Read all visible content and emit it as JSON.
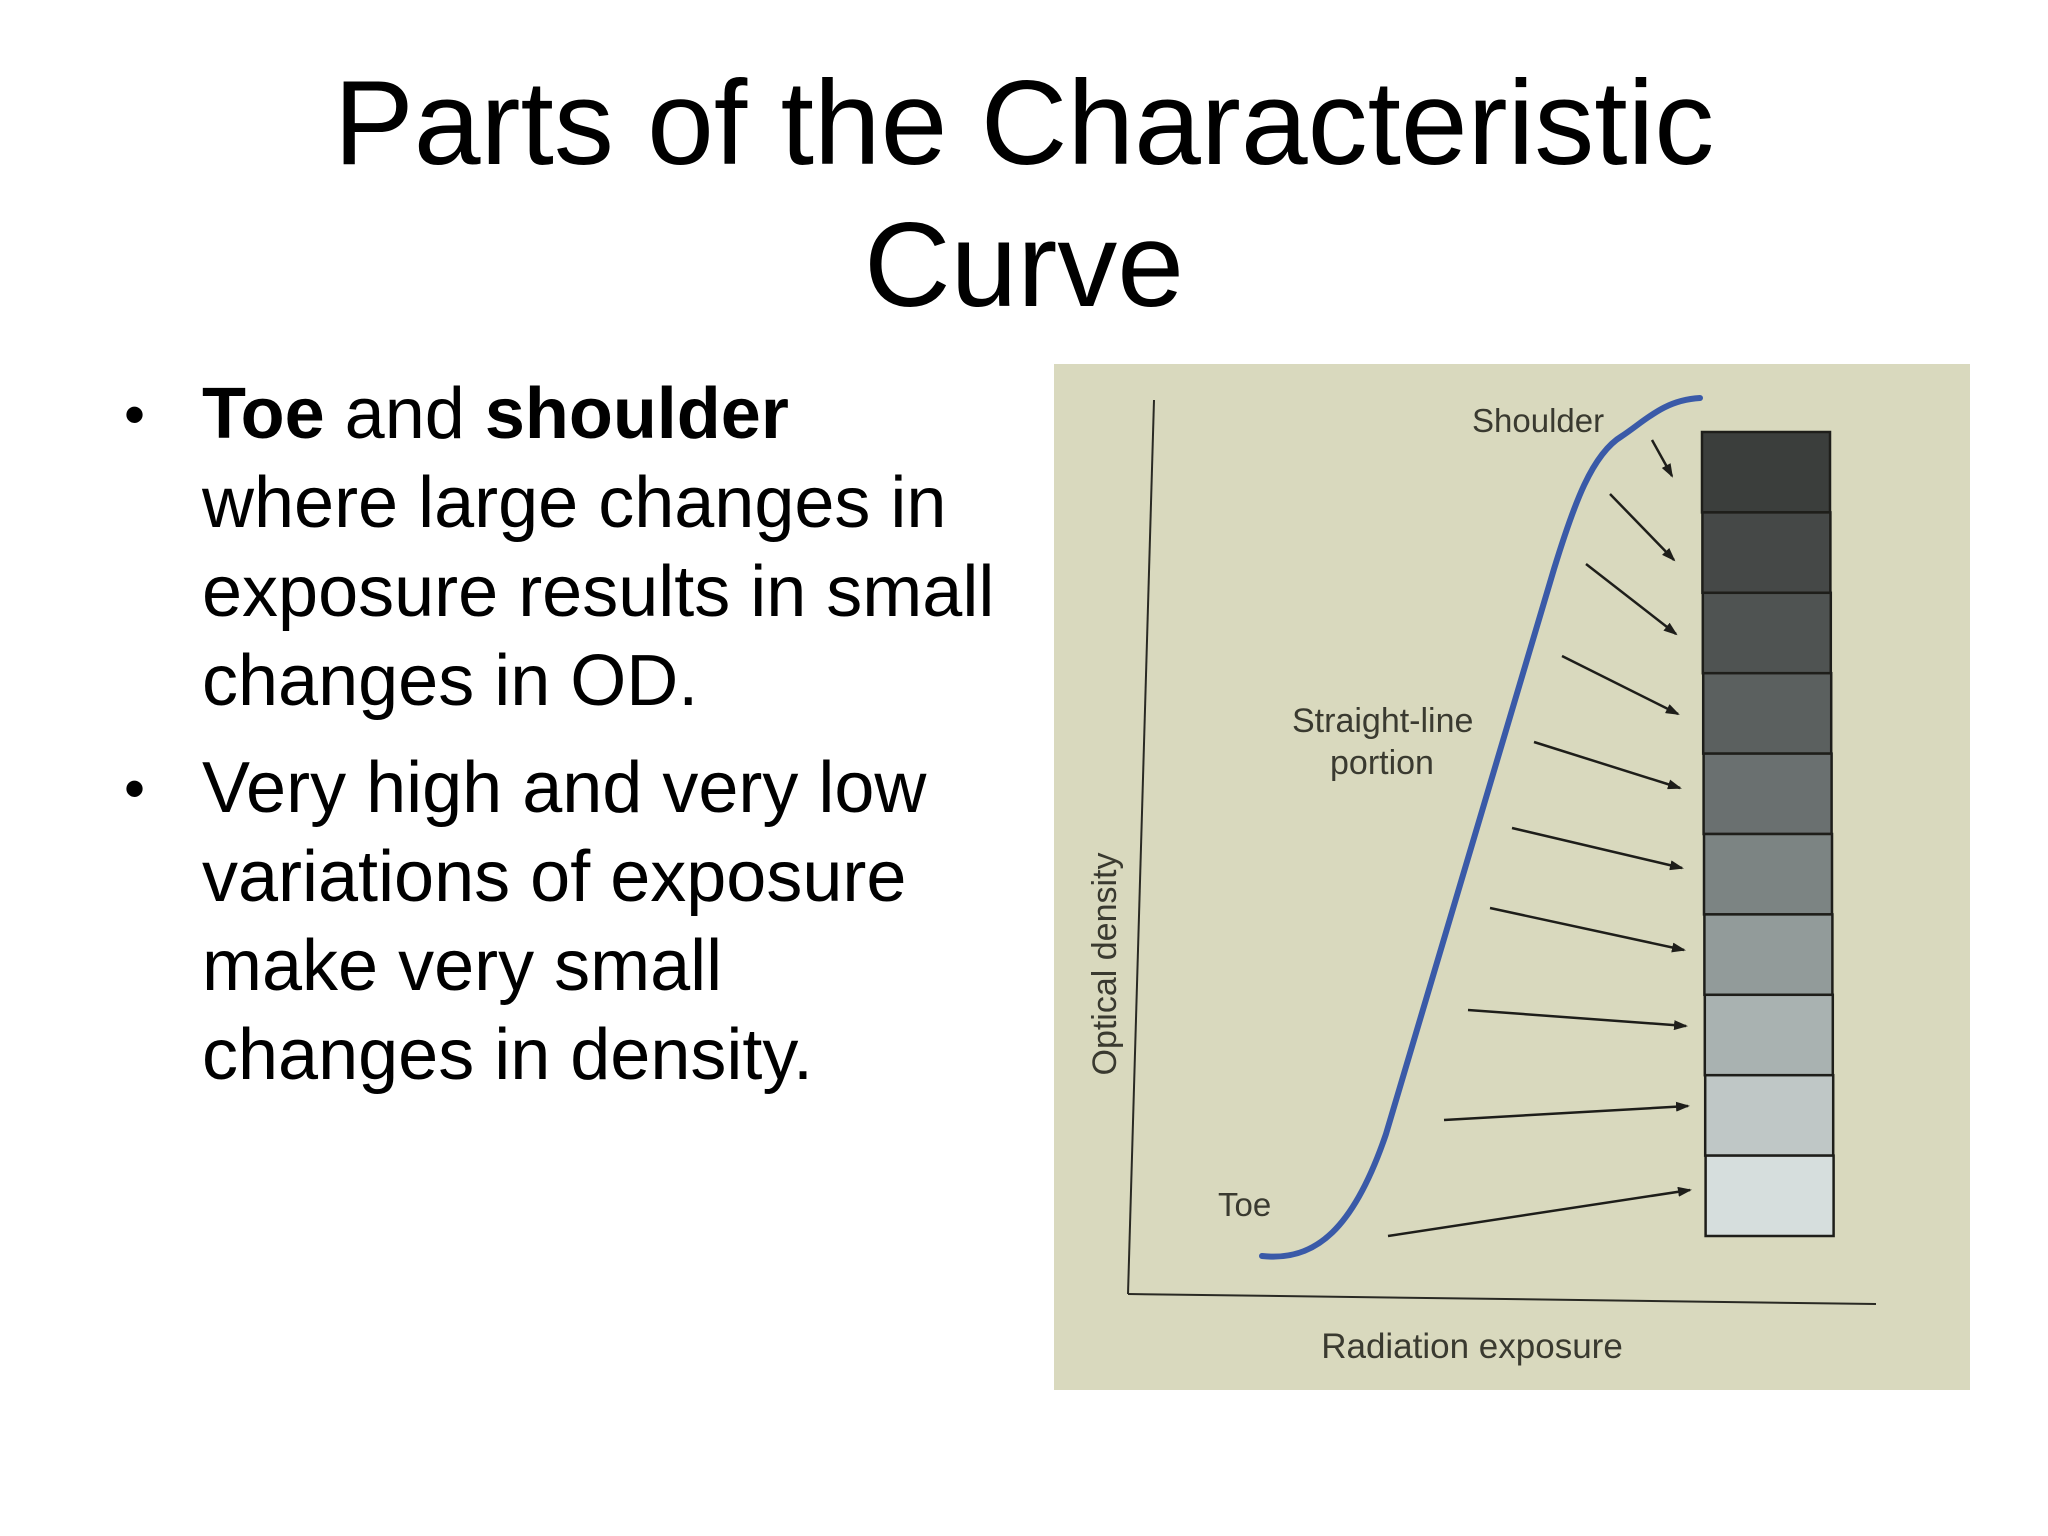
{
  "slide": {
    "title_line1": "Parts of the Characteristic",
    "title_line2": "Curve"
  },
  "bullets": [
    {
      "bold1": "Toe",
      "text1": " and ",
      "bold2": "shoulder",
      "text2": " where large changes in exposure results in small changes in OD."
    },
    {
      "text": "Very high and very low variations of exposure make very small changes in density."
    }
  ],
  "diagram": {
    "labels": {
      "shoulder": "Shoulder",
      "straight_line_1": "Straight-line",
      "straight_line_2": "portion",
      "toe": "Toe",
      "y_axis": "Optical density",
      "x_axis": "Radiation exposure"
    },
    "colors": {
      "background": "#d9d9be",
      "curve": "#3a5aa8",
      "axes": "#2a2a24"
    },
    "step_wedge_steps": 10
  }
}
